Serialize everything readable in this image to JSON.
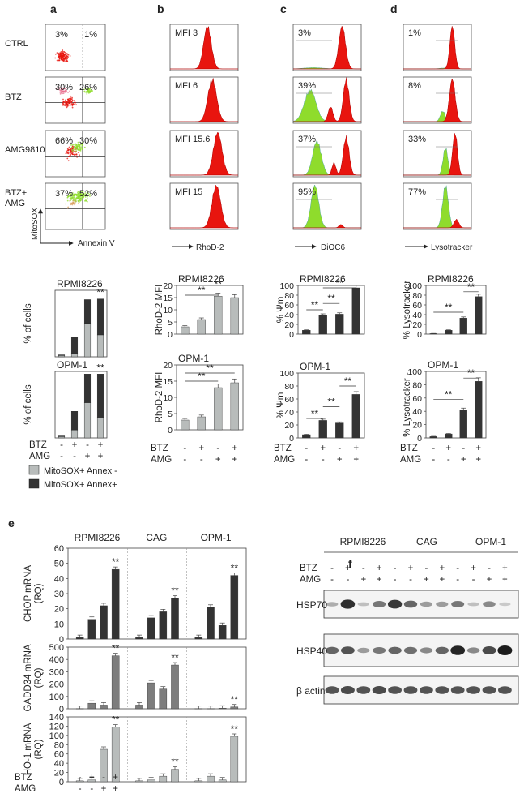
{
  "panel_letters": [
    "a",
    "b",
    "c",
    "d",
    "e",
    "f"
  ],
  "row_labels": [
    "CTRL",
    "BTZ",
    "AMG9810",
    "BTZ+",
    "AMG"
  ],
  "flow_quadrants": [
    {
      "left": "3%",
      "right": "1%"
    },
    {
      "left": "30%",
      "right": "26%"
    },
    {
      "left": "66%",
      "right": "30%"
    },
    {
      "left": "37%",
      "right": "52%"
    }
  ],
  "flow_axes": {
    "y": "MitoSOX",
    "x": "Annexin V"
  },
  "rhod2_mfi": [
    "MFI 3",
    "MFI 6",
    "MFI 15.6",
    "MFI 15"
  ],
  "rhod2_axis": "RhoD-2",
  "dioc6_pct": [
    "3%",
    "39%",
    "37%",
    "95%"
  ],
  "dioc6_axis": "DiOC6",
  "lyso_pct": [
    "1%",
    "8%",
    "33%",
    "77%"
  ],
  "lyso_axis": "Lysotracker",
  "treat_rows": {
    "btz_label": "BTZ",
    "amg_label": "AMG",
    "btz": [
      "-",
      "+",
      "-",
      "+"
    ],
    "amg": [
      "-",
      "-",
      "+",
      "+"
    ]
  },
  "legend": [
    "MitoSOX+ Annex -",
    "MitoSOX+ Annex+"
  ],
  "sig": "**",
  "colors": {
    "light": "#b8bcbb",
    "dark": "#333333",
    "red": "#e8150f",
    "green": "#8fdc2c",
    "gadd": "#7d7d7d"
  },
  "chart_data": [
    {
      "type": "bar",
      "title": "RPMI8226",
      "ylabel": "% of cells",
      "ylim": [
        0,
        100
      ],
      "series": [
        {
          "name": "MitoSOX+ Annex -",
          "values": [
            2,
            5,
            50,
            33
          ]
        },
        {
          "name": "MitoSOX+ Annex+",
          "values": [
            1,
            25,
            36,
            54
          ]
        }
      ]
    },
    {
      "type": "bar",
      "title": "OPM-1",
      "ylabel": "% of cells",
      "ylim": [
        0,
        100
      ],
      "series": [
        {
          "name": "MitoSOX+ Annex -",
          "values": [
            2,
            12,
            53,
            31
          ]
        },
        {
          "name": "MitoSOX+ Annex+",
          "values": [
            1,
            28,
            43,
            65
          ]
        }
      ]
    },
    {
      "type": "bar",
      "title": "RPMI8226",
      "ylabel": "RhoD-2 MFI",
      "ylim": [
        0,
        20
      ],
      "ticks": [
        0,
        5,
        10,
        15,
        20
      ],
      "values": [
        3,
        6,
        15.6,
        15
      ]
    },
    {
      "type": "bar",
      "title": "OPM-1",
      "ylabel": "RhoD-2 MFI",
      "ylim": [
        0,
        20
      ],
      "ticks": [
        0,
        5,
        10,
        15,
        20
      ],
      "values": [
        3,
        4,
        13,
        14.5
      ]
    },
    {
      "type": "bar",
      "title": "RPMI8226",
      "ylabel": "% Ψm",
      "ylim": [
        0,
        100
      ],
      "ticks": [
        0,
        20,
        40,
        60,
        80,
        100
      ],
      "values": [
        8,
        39,
        41,
        95
      ]
    },
    {
      "type": "bar",
      "title": "OPM-1",
      "ylabel": "% Ψm",
      "ylim": [
        0,
        100
      ],
      "ticks": [
        0,
        20,
        40,
        60,
        80,
        100
      ],
      "values": [
        5,
        27,
        23,
        67
      ]
    },
    {
      "type": "bar",
      "title": "RPMI8226",
      "ylabel": "% Lysotracker",
      "ylim": [
        0,
        100
      ],
      "ticks": [
        0,
        20,
        40,
        60,
        80,
        100
      ],
      "values": [
        1,
        8,
        33,
        77
      ]
    },
    {
      "type": "bar",
      "title": "OPM-1",
      "ylabel": "% Lysotracker -",
      "ylim": [
        0,
        100
      ],
      "ticks": [
        0,
        20,
        40,
        60,
        80,
        100
      ],
      "values": [
        2,
        6,
        42,
        85
      ]
    },
    {
      "type": "bar",
      "groups": [
        "RPMI8226",
        "CAG",
        "OPM-1"
      ],
      "ylabel": "CHOP mRNA (RQ)",
      "ylim": [
        0,
        60
      ],
      "ticks": [
        0,
        10,
        20,
        30,
        40,
        50,
        60
      ],
      "values": [
        [
          1,
          13,
          22,
          46
        ],
        [
          1,
          14,
          18,
          27
        ],
        [
          1,
          21,
          9,
          42
        ]
      ]
    },
    {
      "type": "bar",
      "groups": [
        "RPMI8226",
        "CAG",
        "OPM-1"
      ],
      "ylabel": "GADD34 mRNA (RQ)",
      "ylim": [
        0,
        500
      ],
      "ticks": [
        0,
        100,
        200,
        300,
        400,
        500
      ],
      "values": [
        [
          2,
          45,
          30,
          430
        ],
        [
          30,
          210,
          160,
          355
        ],
        [
          2,
          2,
          5,
          15
        ]
      ]
    },
    {
      "type": "bar",
      "groups": [
        "RPMI8226",
        "CAG",
        "OPM-1"
      ],
      "ylabel": "HO-1 mRNA (RQ)",
      "ylim": [
        0,
        140
      ],
      "ticks": [
        0,
        20,
        40,
        60,
        80,
        100,
        120,
        140
      ],
      "values": [
        [
          2,
          4,
          70,
          118
        ],
        [
          2,
          4,
          12,
          27
        ],
        [
          2,
          12,
          4,
          98
        ]
      ]
    }
  ],
  "western": {
    "cells": [
      "RPMI8226",
      "CAG",
      "OPM-1"
    ],
    "proteins": [
      "HSP70",
      "HSP40",
      "β actin"
    ]
  }
}
